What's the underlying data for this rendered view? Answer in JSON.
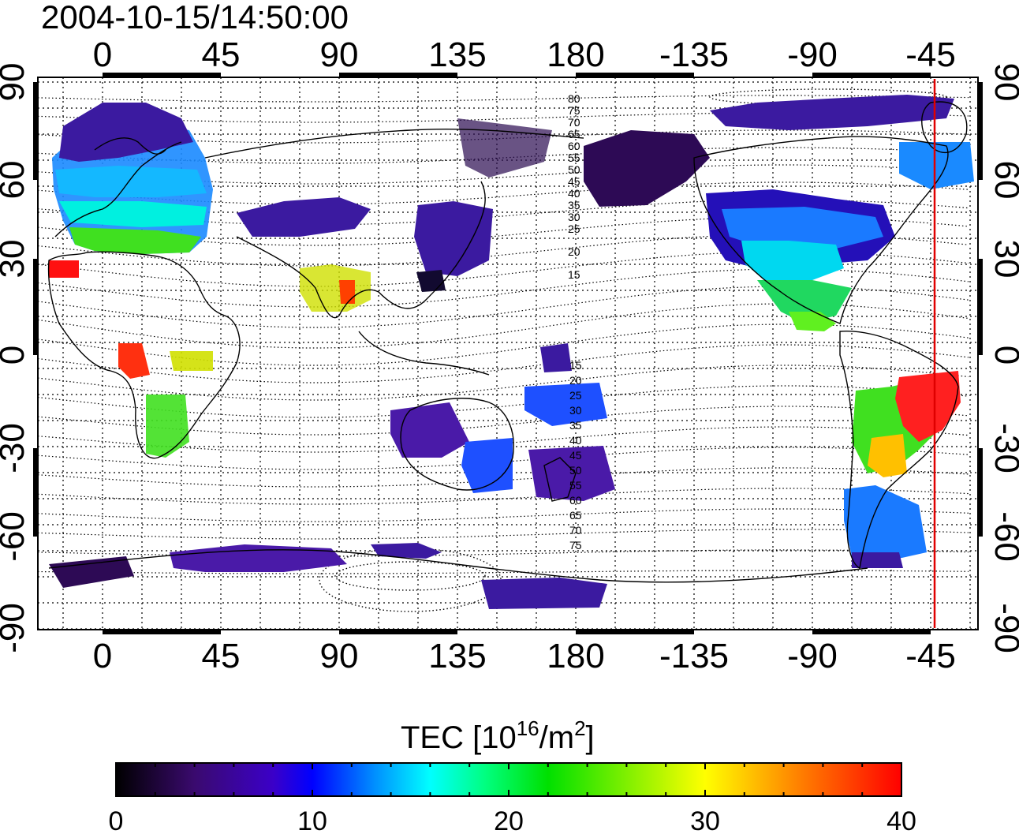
{
  "title": "2004-10-15/14:50:00",
  "map": {
    "lon_ticks_top": [
      "0",
      "45",
      "90",
      "135",
      "180",
      "-135",
      "-90",
      "-45"
    ],
    "lon_ticks_bottom": [
      "0",
      "45",
      "90",
      "135",
      "180",
      "-135",
      "-90",
      "-45"
    ],
    "lat_ticks_left": [
      "90",
      "60",
      "30",
      "0",
      "-30",
      "-60",
      "-90"
    ],
    "lat_ticks_right": [
      "90",
      "60",
      "30",
      "0",
      "-30",
      "-60",
      "-90"
    ],
    "contour_labels_north": [
      "80",
      "75",
      "70",
      "65",
      "60",
      "55",
      "50",
      "45",
      "40",
      "35",
      "30",
      "25",
      "20",
      "15"
    ],
    "contour_labels_south": [
      "15",
      "20",
      "25",
      "30",
      "35",
      "40",
      "45",
      "50",
      "55",
      "60",
      "65",
      "70",
      "75"
    ],
    "terminator_color": "#e00000",
    "grid": true
  },
  "colorbar": {
    "title_main": "TEC  [10",
    "title_sup1": "16",
    "title_mid": "/m",
    "title_sup2": "2",
    "title_end": "]",
    "ticks": [
      "0",
      "10",
      "20",
      "30",
      "40"
    ],
    "range": [
      0,
      40
    ],
    "colormap": [
      "#000000",
      "#3a0a6e",
      "#3b00c8",
      "#0000ff",
      "#0090ff",
      "#00ffff",
      "#00ff80",
      "#00e000",
      "#ffff00",
      "#ff8000",
      "#ff0000"
    ]
  }
}
